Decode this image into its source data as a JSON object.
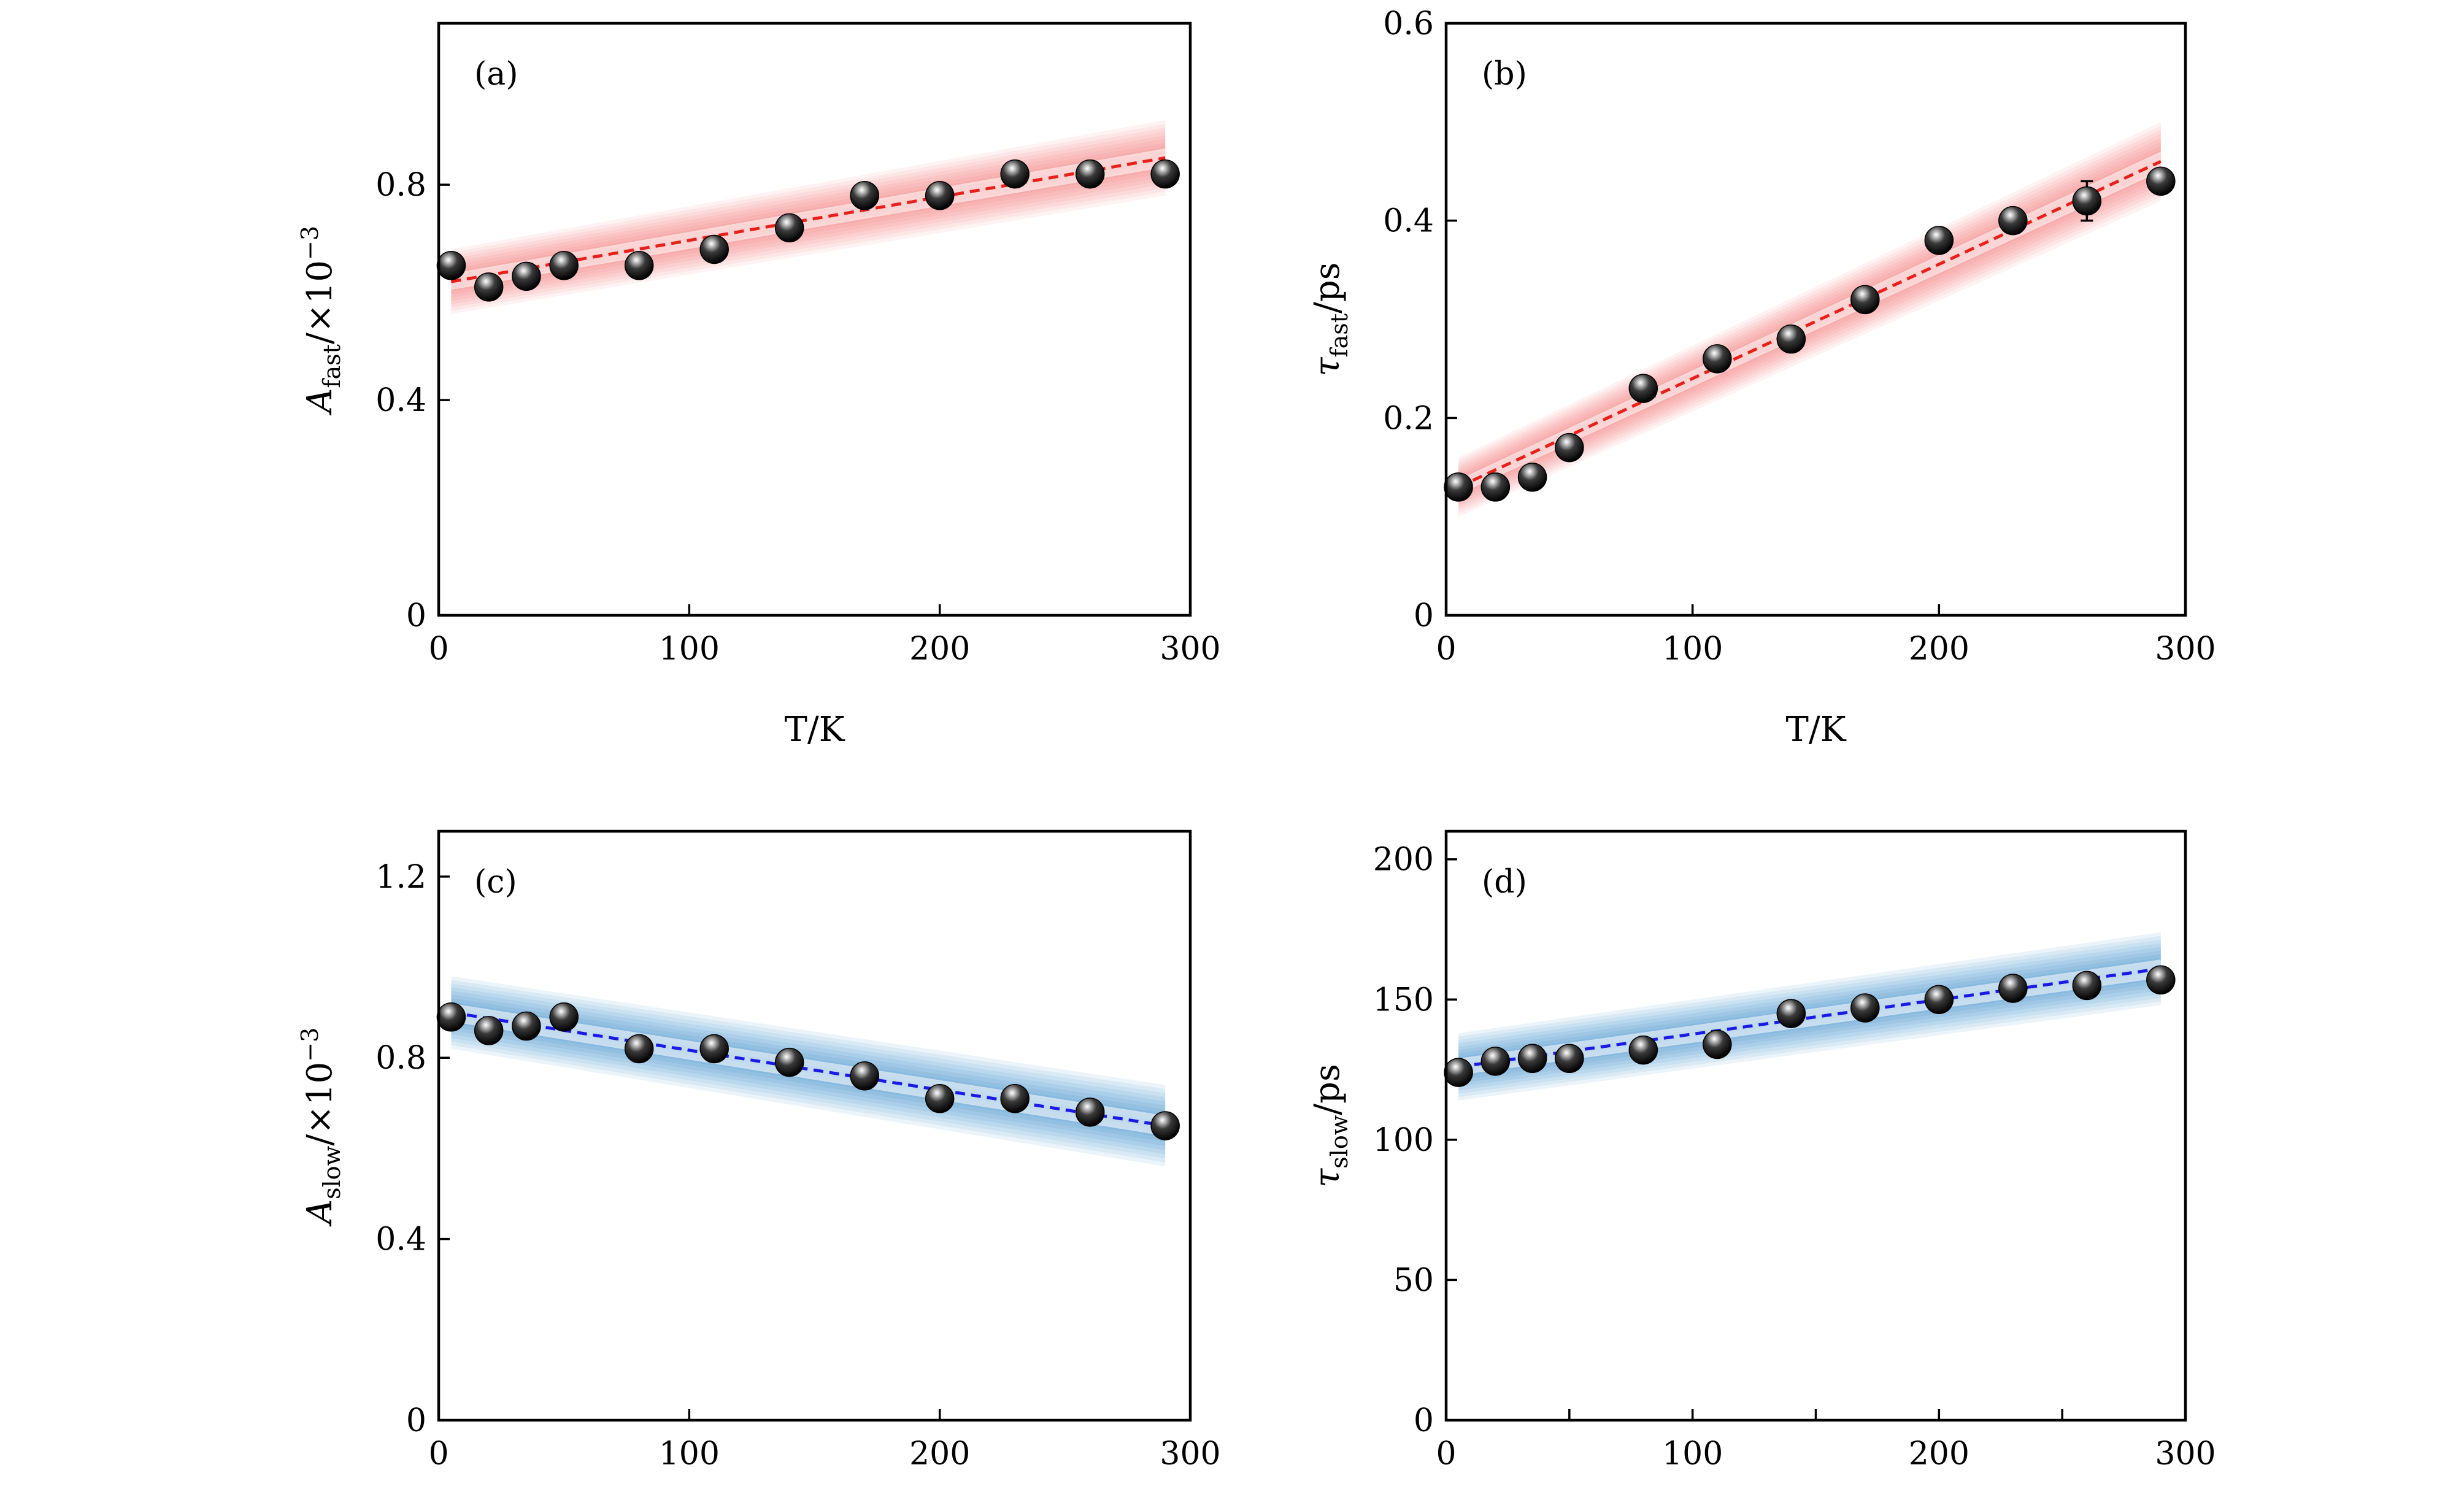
{
  "colors": {
    "fast_line": "#e8201b",
    "fast_band": "#f26b6b",
    "slow_line": "#1a1ae6",
    "slow_band": "#2f86c8",
    "marker": "#111111"
  },
  "chart_data": [
    {
      "type": "scatter",
      "panel_label": "(a)",
      "xlabel": "T/K",
      "ylabel": {
        "main": "A",
        "sub": "fast",
        "tail": "/×10",
        "sup": "−3"
      },
      "xlim": [
        0,
        300
      ],
      "ylim": [
        0,
        1.1
      ],
      "xticks": [
        0,
        100,
        200,
        300
      ],
      "xtick_labels": [
        "0",
        "100",
        "200",
        "300"
      ],
      "yticks": [
        0,
        0.4,
        0.8
      ],
      "ytick_labels": [
        "0",
        "0.4",
        "0.8"
      ],
      "band": "fast",
      "fit": {
        "x": [
          5,
          290
        ],
        "y": [
          0.62,
          0.85
        ],
        "band_halfwidth": [
          0.06,
          0.07
        ]
      },
      "series": [
        {
          "x": [
            5,
            20,
            35,
            50,
            80,
            110,
            140,
            170,
            200,
            230,
            260,
            290
          ],
          "y": [
            0.65,
            0.61,
            0.63,
            0.65,
            0.65,
            0.68,
            0.72,
            0.78,
            0.78,
            0.82,
            0.82,
            0.82
          ],
          "err": [
            0.005,
            0.005,
            0.005,
            0.005,
            0.005,
            0.005,
            0.005,
            0.005,
            0.005,
            0.005,
            0.005,
            0.005
          ]
        }
      ]
    },
    {
      "type": "scatter",
      "panel_label": "(b)",
      "xlabel": "T/K",
      "ylabel": {
        "main": "τ",
        "sub": "fast",
        "tail": "/ps",
        "sup": ""
      },
      "xlim": [
        0,
        300
      ],
      "ylim": [
        0,
        0.6
      ],
      "xticks": [
        0,
        100,
        200,
        300
      ],
      "xtick_labels": [
        "0",
        "100",
        "200",
        "300"
      ],
      "yticks": [
        0,
        0.2,
        0.4,
        0.6
      ],
      "ytick_labels": [
        "0",
        "0.2",
        "0.4",
        "0.6"
      ],
      "band": "fast",
      "fit": {
        "x": [
          5,
          290
        ],
        "y": [
          0.13,
          0.46
        ],
        "band_halfwidth": [
          0.03,
          0.04
        ]
      },
      "series": [
        {
          "x": [
            5,
            20,
            35,
            50,
            80,
            110,
            140,
            170,
            200,
            230,
            260,
            290
          ],
          "y": [
            0.13,
            0.13,
            0.14,
            0.17,
            0.23,
            0.26,
            0.28,
            0.32,
            0.38,
            0.4,
            0.42,
            0.44
          ],
          "err": [
            0.004,
            0.004,
            0.004,
            0.004,
            0.004,
            0.004,
            0.004,
            0.004,
            0.004,
            0.004,
            0.02,
            0.004
          ]
        }
      ]
    },
    {
      "type": "scatter",
      "panel_label": "(c)",
      "xlabel": "T/K",
      "ylabel": {
        "main": "A",
        "sub": "slow",
        "tail": "/×10",
        "sup": "−3"
      },
      "xlim": [
        0,
        300
      ],
      "ylim": [
        0,
        1.3
      ],
      "xticks": [
        0,
        100,
        200,
        300
      ],
      "xtick_labels": [
        "0",
        "100",
        "200",
        "300"
      ],
      "yticks": [
        0,
        0.4,
        0.8,
        1.2
      ],
      "ytick_labels": [
        "0",
        "0.4",
        "0.8",
        "1.2"
      ],
      "band": "slow",
      "fit": {
        "x": [
          5,
          290
        ],
        "y": [
          0.9,
          0.65
        ],
        "band_halfwidth": [
          0.08,
          0.09
        ]
      },
      "series": [
        {
          "x": [
            5,
            20,
            35,
            50,
            80,
            110,
            140,
            170,
            200,
            230,
            260,
            290
          ],
          "y": [
            0.89,
            0.86,
            0.87,
            0.89,
            0.82,
            0.82,
            0.79,
            0.76,
            0.71,
            0.71,
            0.68,
            0.65
          ],
          "err": [
            0.005,
            0.005,
            0.005,
            0.005,
            0.005,
            0.005,
            0.005,
            0.005,
            0.005,
            0.005,
            0.005,
            0.005
          ]
        }
      ]
    },
    {
      "type": "scatter",
      "panel_label": "(d)",
      "xlabel": "T/K",
      "ylabel": {
        "main": "τ",
        "sub": "slow",
        "tail": "/ps",
        "sup": ""
      },
      "xlim": [
        0,
        300
      ],
      "ylim": [
        0,
        210
      ],
      "xticks": [
        0,
        50,
        100,
        150,
        200,
        250,
        300
      ],
      "xtick_labels": [
        "0",
        "",
        "100",
        "",
        "200",
        "",
        "300"
      ],
      "yticks": [
        0,
        50,
        100,
        150,
        200
      ],
      "ytick_labels": [
        "0",
        "50",
        "100",
        "150",
        "200"
      ],
      "band": "slow",
      "fit": {
        "x": [
          5,
          290
        ],
        "y": [
          126,
          161
        ],
        "band_halfwidth": [
          12,
          13
        ]
      },
      "series": [
        {
          "x": [
            5,
            20,
            35,
            50,
            80,
            110,
            140,
            170,
            200,
            230,
            260,
            290
          ],
          "y": [
            124,
            128,
            129,
            129,
            132,
            134,
            145,
            147,
            150,
            154,
            155,
            157
          ],
          "err": [
            1,
            1,
            1,
            1,
            1,
            1,
            1,
            1,
            1,
            1,
            1,
            1
          ]
        }
      ]
    }
  ]
}
